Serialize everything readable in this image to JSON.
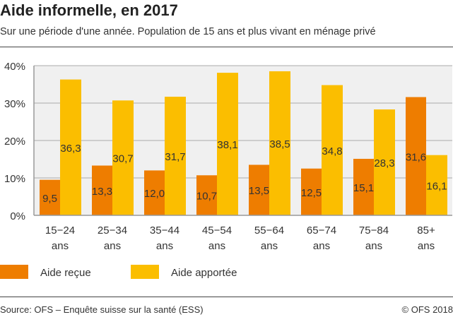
{
  "header": {
    "title": "Aide informelle, en 2017",
    "subtitle": "Sur une période d'une année. Population de 15 ans et plus vivant en ménage privé"
  },
  "footer": {
    "source": "Source: OFS – Enquête suisse sur la santé (ESS)",
    "copyright": "© OFS 2018"
  },
  "chart_data": {
    "type": "bar",
    "categories": [
      [
        "15−24",
        "ans"
      ],
      [
        "25−34",
        "ans"
      ],
      [
        "35−44",
        "ans"
      ],
      [
        "45−54",
        "ans"
      ],
      [
        "55−64",
        "ans"
      ],
      [
        "65−74",
        "ans"
      ],
      [
        "75−84",
        "ans"
      ],
      [
        "85+",
        "ans"
      ]
    ],
    "series": [
      {
        "name": "Aide reçue",
        "color": "#ee7d00",
        "values": [
          9.5,
          13.3,
          12.0,
          10.7,
          13.5,
          12.5,
          15.1,
          31.6
        ],
        "labels": [
          "9,5",
          "13,3",
          "12,0",
          "10,7",
          "13,5",
          "12,5",
          "15,1",
          "31,6"
        ]
      },
      {
        "name": "Aide apportée",
        "color": "#fbbe00",
        "values": [
          36.3,
          30.7,
          31.7,
          38.1,
          38.5,
          34.8,
          28.3,
          16.1
        ],
        "labels": [
          "36,3",
          "30,7",
          "31,7",
          "38,1",
          "38,5",
          "34,8",
          "28,3",
          "16,1"
        ]
      }
    ],
    "ylim": [
      0,
      40
    ],
    "yticks": [
      0,
      10,
      20,
      30,
      40
    ],
    "ytick_labels": [
      "0%",
      "10%",
      "20%",
      "30%",
      "40%"
    ],
    "grid": true,
    "legend": "bottom-left",
    "plot_background": "#f0f0f0"
  }
}
